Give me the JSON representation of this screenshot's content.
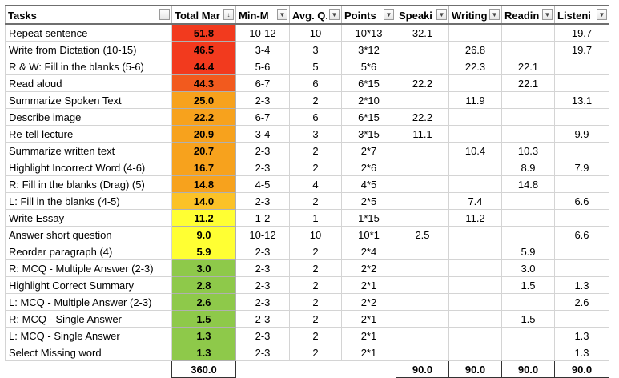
{
  "headers": [
    "Tasks",
    "Total Mar",
    "Min-M",
    "Avg. Q.",
    "Points",
    "Speaki",
    "Writing",
    "Readin",
    "Listeni"
  ],
  "filter_arrows": [
    "",
    "↓",
    "▼",
    "▼",
    "▼",
    "▼",
    "▼",
    "▼",
    "▼"
  ],
  "heat_colors": {
    "red": "#f23a1e",
    "orange_red": "#f25a1e",
    "orange": "#f7a21d",
    "orange_yellow": "#fbc227",
    "yellow": "#ffff33",
    "green": "#8ec94a"
  },
  "rows": [
    {
      "task": "Repeat sentence",
      "total": "51.8",
      "color": "red",
      "min": "10-12",
      "avg": "10",
      "points": "10*13",
      "speaking": "32.1",
      "writing": "",
      "reading": "",
      "listening": "19.7"
    },
    {
      "task": "Write from Dictation (10-15)",
      "total": "46.5",
      "color": "red",
      "min": "3-4",
      "avg": "3",
      "points": "3*12",
      "speaking": "",
      "writing": "26.8",
      "reading": "",
      "listening": "19.7"
    },
    {
      "task": "R & W: Fill in the blanks (5-6)",
      "total": "44.4",
      "color": "red",
      "min": "5-6",
      "avg": "5",
      "points": "5*6",
      "speaking": "",
      "writing": "22.3",
      "reading": "22.1",
      "listening": ""
    },
    {
      "task": "Read aloud",
      "total": "44.3",
      "color": "red",
      "min": "6-7",
      "avg": "6",
      "points": "6*15",
      "speaking": "22.2",
      "writing": "",
      "reading": "22.1",
      "listening": ""
    },
    {
      "task": "Summarize Spoken Text",
      "total": "25.0",
      "color": "orange",
      "min": "2-3",
      "avg": "2",
      "points": "2*10",
      "speaking": "",
      "writing": "11.9",
      "reading": "",
      "listening": "13.1"
    },
    {
      "task": "Describe image",
      "total": "22.2",
      "color": "orange",
      "min": "6-7",
      "avg": "6",
      "points": "6*15",
      "speaking": "22.2",
      "writing": "",
      "reading": "",
      "listening": ""
    },
    {
      "task": "Re-tell lecture",
      "total": "20.9",
      "color": "orange",
      "min": "3-4",
      "avg": "3",
      "points": "3*15",
      "speaking": "11.1",
      "writing": "",
      "reading": "",
      "listening": "9.9"
    },
    {
      "task": "Summarize written text",
      "total": "20.7",
      "color": "orange",
      "min": "2-3",
      "avg": "2",
      "points": "2*7",
      "speaking": "",
      "writing": "10.4",
      "reading": "10.3",
      "listening": ""
    },
    {
      "task": "Highlight Incorrect Word (4-6)",
      "total": "16.7",
      "color": "orange",
      "min": "2-3",
      "avg": "2",
      "points": "2*6",
      "speaking": "",
      "writing": "",
      "reading": "8.9",
      "listening": "7.9"
    },
    {
      "task": "R: Fill in the blanks (Drag) (5)",
      "total": "14.8",
      "color": "orange",
      "min": "4-5",
      "avg": "4",
      "points": "4*5",
      "speaking": "",
      "writing": "",
      "reading": "14.8",
      "listening": ""
    },
    {
      "task": "L: Fill in the blanks (4-5)",
      "total": "14.0",
      "color": "orange",
      "min": "2-3",
      "avg": "2",
      "points": "2*5",
      "speaking": "",
      "writing": "7.4",
      "reading": "",
      "listening": "6.6"
    },
    {
      "task": "Write Essay",
      "total": "11.2",
      "color": "yellow",
      "min": "1-2",
      "avg": "1",
      "points": "1*15",
      "speaking": "",
      "writing": "11.2",
      "reading": "",
      "listening": ""
    },
    {
      "task": "Answer short question",
      "total": "9.0",
      "color": "yellow",
      "min": "10-12",
      "avg": "10",
      "points": "10*1",
      "speaking": "2.5",
      "writing": "",
      "reading": "",
      "listening": "6.6"
    },
    {
      "task": "Reorder paragraph (4)",
      "total": "5.9",
      "color": "yellow",
      "min": "2-3",
      "avg": "2",
      "points": "2*4",
      "speaking": "",
      "writing": "",
      "reading": "5.9",
      "listening": ""
    },
    {
      "task": "R: MCQ - Multiple Answer (2-3)",
      "total": "3.0",
      "color": "green",
      "min": "2-3",
      "avg": "2",
      "points": "2*2",
      "speaking": "",
      "writing": "",
      "reading": "3.0",
      "listening": ""
    },
    {
      "task": "Highlight Correct Summary",
      "total": "2.8",
      "color": "green",
      "min": "2-3",
      "avg": "2",
      "points": "2*1",
      "speaking": "",
      "writing": "",
      "reading": "1.5",
      "listening": "1.3"
    },
    {
      "task": "L: MCQ - Multiple Answer (2-3)",
      "total": "2.6",
      "color": "green",
      "min": "2-3",
      "avg": "2",
      "points": "2*2",
      "speaking": "",
      "writing": "",
      "reading": "",
      "listening": "2.6"
    },
    {
      "task": "R: MCQ - Single Answer",
      "total": "1.5",
      "color": "green",
      "min": "2-3",
      "avg": "2",
      "points": "2*1",
      "speaking": "",
      "writing": "",
      "reading": "1.5",
      "listening": ""
    },
    {
      "task": "L: MCQ - Single Answer",
      "total": "1.3",
      "color": "green",
      "min": "2-3",
      "avg": "2",
      "points": "2*1",
      "speaking": "",
      "writing": "",
      "reading": "",
      "listening": "1.3"
    },
    {
      "task": "Select Missing word",
      "total": "1.3",
      "color": "green",
      "min": "2-3",
      "avg": "2",
      "points": "2*1",
      "speaking": "",
      "writing": "",
      "reading": "",
      "listening": "1.3"
    }
  ],
  "totals": {
    "total": "360.0",
    "speaking": "90.0",
    "writing": "90.0",
    "reading": "90.0",
    "listening": "90.0"
  }
}
